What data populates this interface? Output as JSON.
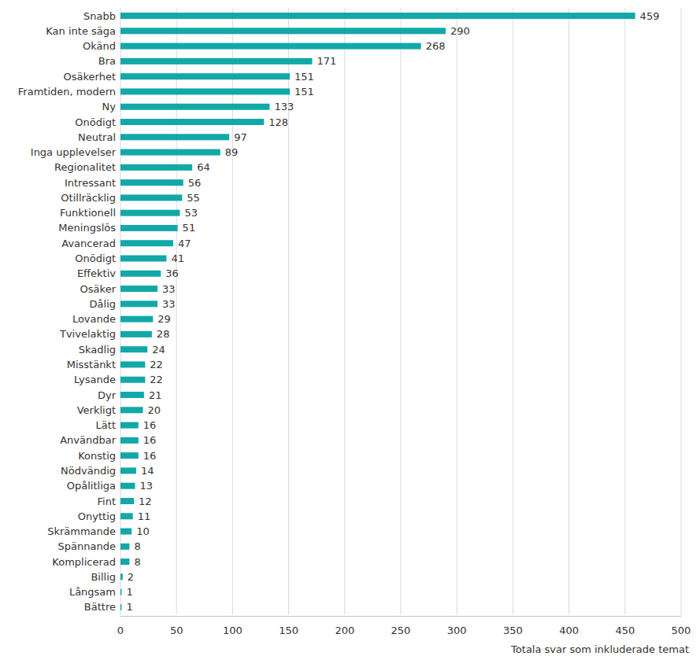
{
  "chart_data": {
    "type": "bar",
    "orientation": "horizontal",
    "categories": [
      "Snabb",
      "Kan inte säga",
      "Okänd",
      "Bra",
      "Osäkerhet",
      "Framtiden, modern",
      "Ny",
      "Onödigt",
      "Neutral",
      "Inga upplevelser",
      "Regionalitet",
      "Intressant",
      "Otillräcklig",
      "Funktionell",
      "Meningslös",
      "Avancerad",
      "Onödigt",
      "Effektiv",
      "Osäker",
      "Dålig",
      "Lovande",
      "Tvivelaktig",
      "Skadlig",
      "Misstänkt",
      "Lysande",
      "Dyr",
      "Verkligt",
      "Lätt",
      "Användbar",
      "Konstig",
      "Nödvändig",
      "Opålitliga",
      "Fint",
      "Onyttig",
      "Skrämmande",
      "Spännande",
      "Komplicerad",
      "Billig",
      "Långsam",
      "Bättre"
    ],
    "values": [
      459,
      290,
      268,
      171,
      151,
      151,
      133,
      128,
      97,
      89,
      64,
      56,
      55,
      53,
      51,
      47,
      41,
      36,
      33,
      33,
      29,
      28,
      24,
      22,
      22,
      21,
      20,
      16,
      16,
      16,
      14,
      13,
      12,
      11,
      10,
      8,
      8,
      2,
      1,
      1
    ],
    "color": "#13a8a8",
    "xlabel": "Totala svar som inkluderade temat",
    "xlim": [
      0,
      500
    ],
    "xticks": [
      0,
      50,
      100,
      150,
      200,
      250,
      300,
      350,
      400,
      450,
      500
    ],
    "grid": true,
    "data_labels": true
  }
}
